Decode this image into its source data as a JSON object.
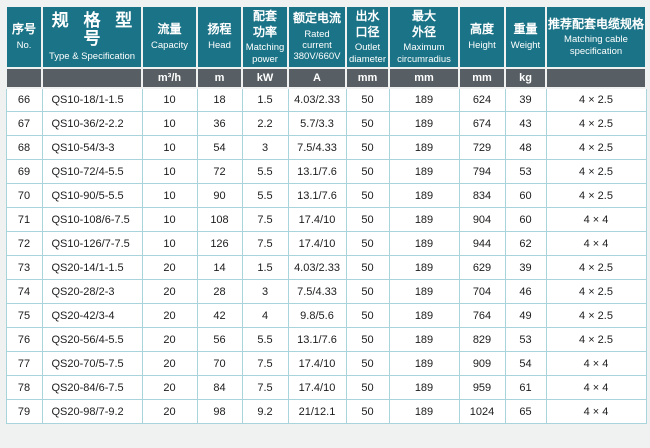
{
  "table": {
    "columns": [
      {
        "key": "no",
        "zh": "序号",
        "en": "No.",
        "unit": ""
      },
      {
        "key": "type",
        "zh": "规 格 型 号",
        "en": "Type & Specification",
        "unit": ""
      },
      {
        "key": "capacity",
        "zh": "流量",
        "en": "Capacity",
        "unit": "m³/h"
      },
      {
        "key": "head",
        "zh": "扬程",
        "en": "Head",
        "unit": "m"
      },
      {
        "key": "power",
        "zh": "配套\n功率",
        "en": "Matching\npower",
        "unit": "kW"
      },
      {
        "key": "current",
        "zh": "额定电流",
        "en": "Rated\ncurrent\n380V/660V",
        "unit": "A"
      },
      {
        "key": "outlet",
        "zh": "出水\n口径",
        "en": "Outlet\ndiameter",
        "unit": "mm"
      },
      {
        "key": "max_od",
        "zh": "最大\n外径",
        "en": "Maximum\ncircumradius",
        "unit": "mm"
      },
      {
        "key": "height",
        "zh": "高度",
        "en": "Height",
        "unit": "mm"
      },
      {
        "key": "weight",
        "zh": "重量",
        "en": "Weight",
        "unit": "kg"
      },
      {
        "key": "cable",
        "zh": "推荐配套电缆规格",
        "en": "Matching cable\nspecification",
        "unit": ""
      }
    ],
    "rows": [
      [
        "66",
        "QS10-18/1-1.5",
        "10",
        "18",
        "1.5",
        "4.03/2.33",
        "50",
        "189",
        "624",
        "39",
        "4 × 2.5"
      ],
      [
        "67",
        "QS10-36/2-2.2",
        "10",
        "36",
        "2.2",
        "5.7/3.3",
        "50",
        "189",
        "674",
        "43",
        "4 × 2.5"
      ],
      [
        "68",
        "QS10-54/3-3",
        "10",
        "54",
        "3",
        "7.5/4.33",
        "50",
        "189",
        "729",
        "48",
        "4 × 2.5"
      ],
      [
        "69",
        "QS10-72/4-5.5",
        "10",
        "72",
        "5.5",
        "13.1/7.6",
        "50",
        "189",
        "794",
        "53",
        "4 × 2.5"
      ],
      [
        "70",
        "QS10-90/5-5.5",
        "10",
        "90",
        "5.5",
        "13.1/7.6",
        "50",
        "189",
        "834",
        "60",
        "4 × 2.5"
      ],
      [
        "71",
        "QS10-108/6-7.5",
        "10",
        "108",
        "7.5",
        "17.4/10",
        "50",
        "189",
        "904",
        "60",
        "4 × 4"
      ],
      [
        "72",
        "QS10-126/7-7.5",
        "10",
        "126",
        "7.5",
        "17.4/10",
        "50",
        "189",
        "944",
        "62",
        "4 × 4"
      ],
      [
        "73",
        "QS20-14/1-1.5",
        "20",
        "14",
        "1.5",
        "4.03/2.33",
        "50",
        "189",
        "629",
        "39",
        "4 × 2.5"
      ],
      [
        "74",
        "QS20-28/2-3",
        "20",
        "28",
        "3",
        "7.5/4.33",
        "50",
        "189",
        "704",
        "46",
        "4 × 2.5"
      ],
      [
        "75",
        "QS20-42/3-4",
        "20",
        "42",
        "4",
        "9.8/5.6",
        "50",
        "189",
        "764",
        "49",
        "4 × 2.5"
      ],
      [
        "76",
        "QS20-56/4-5.5",
        "20",
        "56",
        "5.5",
        "13.1/7.6",
        "50",
        "189",
        "829",
        "53",
        "4 × 2.5"
      ],
      [
        "77",
        "QS20-70/5-7.5",
        "20",
        "70",
        "7.5",
        "17.4/10",
        "50",
        "189",
        "909",
        "54",
        "4 × 4"
      ],
      [
        "78",
        "QS20-84/6-7.5",
        "20",
        "84",
        "7.5",
        "17.4/10",
        "50",
        "189",
        "959",
        "61",
        "4 × 4"
      ],
      [
        "79",
        "QS20-98/7-9.2",
        "20",
        "98",
        "9.2",
        "21/12.1",
        "50",
        "189",
        "1024",
        "65",
        "4 × 4"
      ]
    ]
  },
  "colors": {
    "header_bg": "#1a7386",
    "unit_row_bg": "#575f64",
    "grid_border": "#a9d4db",
    "header_text": "#ffffff",
    "body_text": "#1c1c1c",
    "page_bg": "#f0f2f1"
  }
}
